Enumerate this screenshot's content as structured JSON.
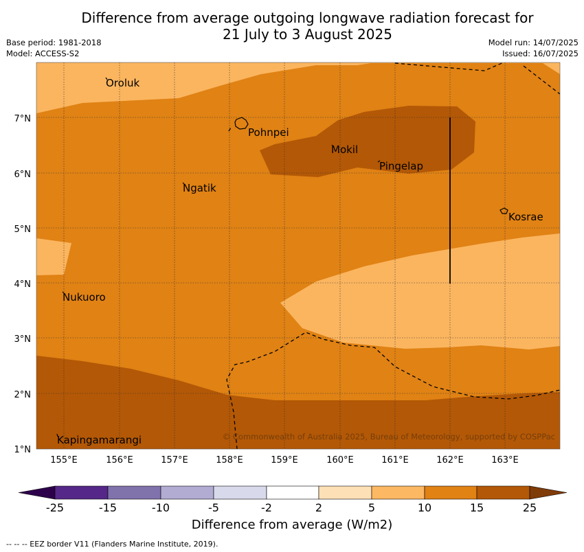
{
  "header": {
    "title_line1": "Difference from average outgoing longwave radiation forecast for",
    "title_line2": "21 July to 3 August 2025",
    "base_period": "Base period: 1981-2018",
    "model": "Model: ACCESS-S2",
    "model_run": "Model run: 14/07/2025",
    "issued": "Issued: 16/07/2025"
  },
  "map": {
    "lon_labels": [
      "155°E",
      "156°E",
      "157°E",
      "158°E",
      "159°E",
      "160°E",
      "161°E",
      "162°E",
      "163°E"
    ],
    "lat_labels": [
      "7°N",
      "6°N",
      "5°N",
      "4°N",
      "3°N",
      "2°N",
      "1°N"
    ],
    "places": [
      {
        "name": "Oroluk",
        "lon": 155.75,
        "lat": 7.63
      },
      {
        "name": "Pohnpei",
        "lon": 158.3,
        "lat": 6.87
      },
      {
        "name": "Mokil",
        "lon": 159.8,
        "lat": 6.68
      },
      {
        "name": "Pingelap",
        "lon": 160.7,
        "lat": 6.22
      },
      {
        "name": "Ngatik",
        "lon": 157.1,
        "lat": 5.79
      },
      {
        "name": "Kosrae",
        "lon": 163.0,
        "lat": 5.32
      },
      {
        "name": "Nukuoro",
        "lon": 154.95,
        "lat": 3.85
      },
      {
        "name": "Kapingamarangi",
        "lon": 154.9,
        "lat": 1.07
      }
    ],
    "copyright": "© Commonwealth of Australia 2025, Bureau of Meteorology, supported by COSPPac",
    "colors": {
      "class_5_10": "#fbb55f",
      "class_10_15": "#e08214",
      "class_15_25": "#b35806"
    }
  },
  "colorbar": {
    "ticks": [
      "-25",
      "-15",
      "-10",
      "-5",
      "-2",
      "2",
      "5",
      "10",
      "15",
      "25"
    ],
    "colors": [
      "#2d004b",
      "#542788",
      "#8073ac",
      "#b2abd2",
      "#d8daeb",
      "#ffffff",
      "#fee0b6",
      "#fdb863",
      "#e08214",
      "#b35806",
      "#7f3b08"
    ],
    "label": "Difference from average (W/m2)"
  },
  "footnote": "--  --  -- EEZ border V11 (Flanders Marine Institute, 2019)."
}
